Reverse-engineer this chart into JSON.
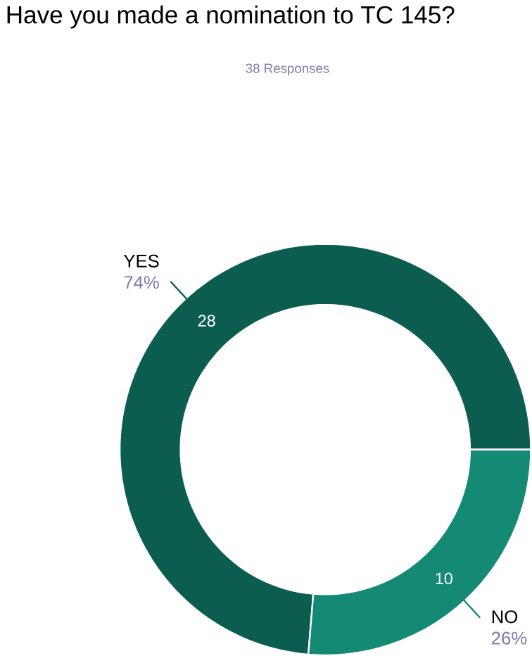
{
  "chart_data": {
    "type": "donut",
    "title": "Have you made a nomination to TC 145?",
    "subtitle": "38 Responses",
    "categories": [
      "YES",
      "NO"
    ],
    "values": [
      28,
      10
    ],
    "colors": [
      "#0b5e4f",
      "#148a74"
    ],
    "data_labels": true,
    "annotations": [
      "74%",
      "26%"
    ]
  }
}
